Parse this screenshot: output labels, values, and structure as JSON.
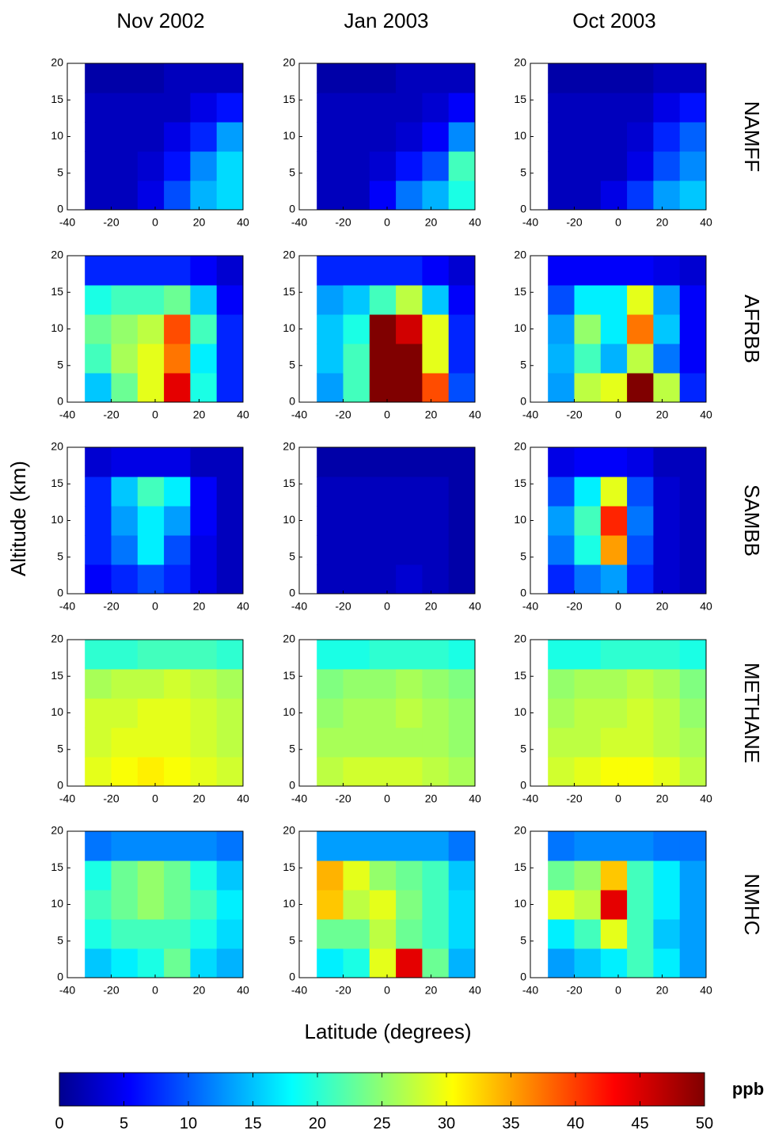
{
  "chart_data": {
    "type": "heatmap",
    "col_titles": [
      "Nov 2002",
      "Jan 2003",
      "Oct 2003"
    ],
    "row_titles": [
      "NAMFF",
      "AFRBB",
      "SAMBB",
      "METHANE",
      "NMHC"
    ],
    "xlabel": "Latitude (degrees)",
    "ylabel": "Altitude (km)",
    "xlim": [
      -40,
      40
    ],
    "ylim": [
      0,
      20
    ],
    "xticks": [
      -40,
      -20,
      0,
      20,
      40
    ],
    "yticks": [
      0,
      5,
      10,
      15,
      20
    ],
    "x_edges": [
      -32,
      -20,
      -8,
      4,
      16,
      28,
      40
    ],
    "y_edges": [
      0,
      4,
      8,
      12,
      16,
      20
    ],
    "colorbar": {
      "label": "ppb",
      "lim": [
        0,
        50
      ],
      "ticks": [
        0,
        5,
        10,
        15,
        20,
        25,
        30,
        35,
        40,
        45,
        50
      ]
    },
    "z": [
      [
        [
          [
            3,
            3,
            5,
            10,
            15,
            17
          ],
          [
            3,
            3,
            4,
            7,
            13,
            17
          ],
          [
            3,
            3,
            3,
            5,
            8,
            14
          ],
          [
            3,
            3,
            3,
            3,
            5,
            7
          ],
          [
            2,
            2,
            2,
            3,
            3,
            3
          ]
        ],
        [
          [
            3,
            3,
            6,
            12,
            15,
            20
          ],
          [
            3,
            3,
            4,
            7,
            10,
            22
          ],
          [
            3,
            3,
            3,
            4,
            6,
            13
          ],
          [
            3,
            3,
            3,
            3,
            4,
            6
          ],
          [
            2,
            2,
            2,
            3,
            3,
            3
          ]
        ],
        [
          [
            3,
            3,
            5,
            9,
            14,
            16
          ],
          [
            3,
            3,
            3,
            5,
            10,
            13
          ],
          [
            3,
            3,
            3,
            4,
            8,
            11
          ],
          [
            3,
            3,
            3,
            3,
            5,
            7
          ],
          [
            2,
            2,
            2,
            2,
            3,
            3
          ]
        ]
      ],
      [
        [
          [
            16,
            24,
            30,
            45,
            20,
            8
          ],
          [
            22,
            27,
            30,
            38,
            18,
            8
          ],
          [
            24,
            26,
            28,
            40,
            22,
            8
          ],
          [
            20,
            22,
            22,
            24,
            16,
            6
          ],
          [
            8,
            8,
            8,
            8,
            6,
            4
          ]
        ],
        [
          [
            14,
            22,
            50,
            50,
            40,
            10
          ],
          [
            16,
            22,
            50,
            50,
            30,
            8
          ],
          [
            16,
            20,
            50,
            46,
            30,
            8
          ],
          [
            14,
            16,
            22,
            28,
            16,
            6
          ],
          [
            8,
            8,
            8,
            8,
            6,
            4
          ]
        ],
        [
          [
            14,
            28,
            30,
            50,
            28,
            8
          ],
          [
            15,
            22,
            15,
            28,
            12,
            6
          ],
          [
            14,
            26,
            18,
            38,
            16,
            6
          ],
          [
            10,
            18,
            18,
            30,
            14,
            6
          ],
          [
            6,
            6,
            6,
            6,
            5,
            4
          ]
        ]
      ],
      [
        [
          [
            6,
            8,
            10,
            8,
            5,
            3
          ],
          [
            8,
            12,
            18,
            10,
            5,
            3
          ],
          [
            8,
            14,
            18,
            14,
            6,
            3
          ],
          [
            8,
            16,
            22,
            18,
            6,
            3
          ],
          [
            4,
            5,
            5,
            5,
            3,
            3
          ]
        ],
        [
          [
            3,
            3,
            3,
            4,
            3,
            2
          ],
          [
            3,
            3,
            3,
            3,
            3,
            2
          ],
          [
            3,
            3,
            3,
            3,
            3,
            2
          ],
          [
            3,
            3,
            3,
            3,
            3,
            2
          ],
          [
            2,
            2,
            2,
            2,
            2,
            2
          ]
        ],
        [
          [
            8,
            12,
            14,
            8,
            4,
            3
          ],
          [
            12,
            20,
            36,
            10,
            4,
            3
          ],
          [
            14,
            22,
            42,
            12,
            4,
            3
          ],
          [
            10,
            18,
            30,
            10,
            4,
            3
          ],
          [
            5,
            6,
            6,
            5,
            3,
            3
          ]
        ]
      ],
      [
        [
          [
            30,
            31,
            32,
            31,
            30,
            29
          ],
          [
            29,
            30,
            30,
            30,
            29,
            28
          ],
          [
            29,
            29,
            30,
            30,
            29,
            28
          ],
          [
            27,
            28,
            28,
            29,
            28,
            27
          ],
          [
            21,
            21,
            22,
            22,
            22,
            21
          ]
        ],
        [
          [
            28,
            29,
            29,
            29,
            28,
            27
          ],
          [
            27,
            27,
            27,
            27,
            27,
            26
          ],
          [
            26,
            27,
            27,
            28,
            27,
            26
          ],
          [
            25,
            26,
            26,
            27,
            26,
            25
          ],
          [
            20,
            20,
            21,
            21,
            21,
            20
          ]
        ],
        [
          [
            29,
            30,
            31,
            31,
            30,
            28
          ],
          [
            28,
            28,
            29,
            29,
            28,
            27
          ],
          [
            27,
            28,
            28,
            29,
            28,
            26
          ],
          [
            26,
            27,
            27,
            28,
            27,
            25
          ],
          [
            20,
            20,
            21,
            21,
            21,
            20
          ]
        ]
      ],
      [
        [
          [
            16,
            18,
            20,
            24,
            17,
            15
          ],
          [
            20,
            22,
            22,
            22,
            20,
            17
          ],
          [
            22,
            24,
            26,
            24,
            22,
            18
          ],
          [
            20,
            24,
            26,
            24,
            20,
            16
          ],
          [
            12,
            13,
            13,
            13,
            13,
            12
          ]
        ],
        [
          [
            18,
            20,
            30,
            45,
            24,
            15
          ],
          [
            24,
            24,
            28,
            24,
            22,
            17
          ],
          [
            34,
            28,
            30,
            25,
            22,
            17
          ],
          [
            35,
            30,
            26,
            24,
            22,
            16
          ],
          [
            14,
            14,
            14,
            14,
            14,
            12
          ]
        ],
        [
          [
            14,
            16,
            18,
            22,
            18,
            14
          ],
          [
            18,
            22,
            30,
            22,
            16,
            14
          ],
          [
            30,
            28,
            45,
            22,
            18,
            14
          ],
          [
            24,
            26,
            34,
            22,
            18,
            14
          ],
          [
            12,
            13,
            13,
            13,
            12,
            12
          ]
        ]
      ]
    ]
  }
}
